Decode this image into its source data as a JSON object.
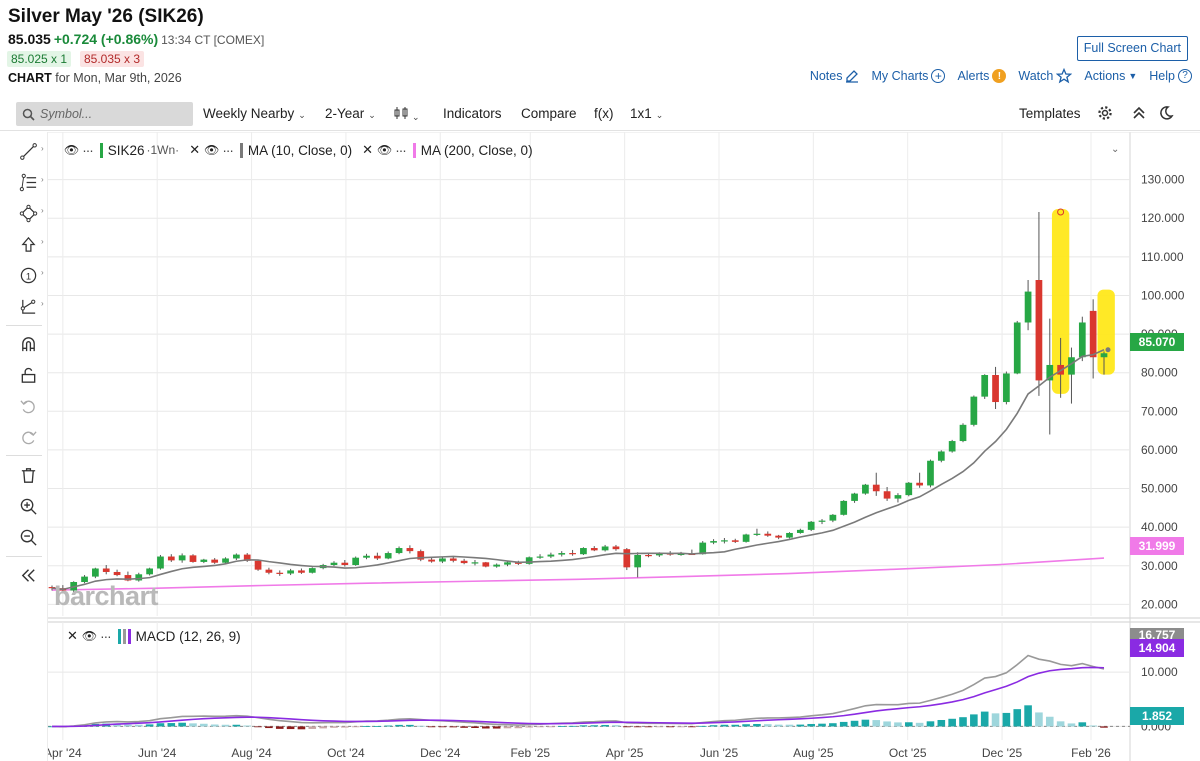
{
  "header": {
    "title": "Silver May '26 (SIK26)",
    "last": "85.035",
    "change": "+0.724 (+0.86%)",
    "time": "13:34 CT [COMEX]",
    "bid": "85.025 x 1",
    "ask": "85.035 x 3",
    "chart_label": "CHART",
    "chart_date": "for Mon, Mar 9th, 2026"
  },
  "buttons": {
    "fullscreen": "Full Screen Chart"
  },
  "nav": {
    "notes": "Notes",
    "mycharts": "My Charts",
    "alerts": "Alerts",
    "alerts_badge": "!",
    "watch": "Watch",
    "actions": "Actions",
    "help": "Help"
  },
  "toolbar": {
    "symbol_placeholder": "Symbol...",
    "period": "Weekly Nearby",
    "range": "2-Year",
    "indicators": "Indicators",
    "compare": "Compare",
    "fx": "f(x)",
    "layout": "1x1",
    "templates": "Templates"
  },
  "legend": {
    "series": "SIK26",
    "series_suffix": "·1Wn·",
    "ma10": "MA (10, Close, 0)",
    "ma200": "MA (200, Close, 0)",
    "macd": "MACD (12, 26, 9)"
  },
  "watermark": "barchart",
  "colors": {
    "up": "#27a745",
    "down": "#d9372f",
    "ma10": "#7a7a7a",
    "ma200": "#f07ae8",
    "macd": "#999999",
    "signal": "#8a2be2",
    "hist_up": "#1aa8a8",
    "hist_up_light": "#9ed6dc",
    "hist_down": "#8b1a1a",
    "highlight": "#ffe81a",
    "accent": "#1c5fa8"
  },
  "chart_data": {
    "type": "candlestick",
    "title": "Silver May '26 (SIK26)",
    "timeframe": "Weekly Nearby, 2-Year",
    "x_tick_labels": [
      "Apr '24",
      "Jun '24",
      "Aug '24",
      "Oct '24",
      "Dec '24",
      "Feb '25",
      "Apr '25",
      "Jun '25",
      "Aug '25",
      "Oct '25",
      "Dec '25",
      "Feb '26"
    ],
    "y_tick_labels": [
      "130.000",
      "120.000",
      "110.000",
      "100.000",
      "90.000",
      "80.000",
      "70.000",
      "60.000",
      "50.000",
      "40.000",
      "30.000",
      "20.000"
    ],
    "ylim": [
      17,
      133
    ],
    "candles": [
      [
        24.5,
        24.9,
        23.6,
        24.2
      ],
      [
        24.2,
        25.0,
        22.9,
        23.6
      ],
      [
        23.6,
        26.0,
        23.2,
        25.8
      ],
      [
        25.8,
        27.6,
        25.5,
        27.2
      ],
      [
        27.2,
        29.5,
        26.8,
        29.3
      ],
      [
        29.3,
        30.2,
        27.8,
        28.4
      ],
      [
        28.4,
        29.0,
        27.3,
        27.6
      ],
      [
        27.6,
        28.5,
        26.0,
        26.2
      ],
      [
        26.2,
        28.2,
        25.9,
        27.8
      ],
      [
        27.8,
        29.5,
        27.5,
        29.3
      ],
      [
        29.3,
        32.8,
        29.0,
        32.4
      ],
      [
        32.4,
        33.0,
        31.0,
        31.4
      ],
      [
        31.4,
        33.2,
        30.8,
        32.7
      ],
      [
        32.7,
        33.0,
        30.8,
        31.0
      ],
      [
        31.0,
        31.8,
        30.7,
        31.6
      ],
      [
        31.6,
        32.0,
        30.5,
        30.8
      ],
      [
        30.8,
        32.2,
        30.5,
        31.9
      ],
      [
        31.9,
        33.2,
        31.5,
        32.9
      ],
      [
        32.9,
        33.3,
        31.0,
        31.3
      ],
      [
        31.3,
        31.6,
        28.7,
        29.0
      ],
      [
        29.0,
        29.5,
        27.8,
        28.2
      ],
      [
        28.2,
        28.8,
        27.4,
        28.0
      ],
      [
        28.0,
        29.2,
        27.6,
        28.8
      ],
      [
        28.8,
        29.3,
        27.9,
        28.2
      ],
      [
        28.2,
        29.6,
        28.0,
        29.4
      ],
      [
        29.4,
        30.5,
        29.1,
        30.2
      ],
      [
        30.2,
        31.2,
        29.9,
        30.8
      ],
      [
        30.8,
        31.5,
        29.8,
        30.2
      ],
      [
        30.2,
        32.4,
        30.0,
        32.1
      ],
      [
        32.1,
        33.1,
        31.7,
        32.6
      ],
      [
        32.6,
        33.4,
        31.5,
        31.9
      ],
      [
        31.9,
        33.7,
        31.7,
        33.3
      ],
      [
        33.3,
        35.0,
        33.0,
        34.6
      ],
      [
        34.6,
        35.3,
        33.2,
        33.8
      ],
      [
        33.8,
        34.2,
        31.2,
        31.6
      ],
      [
        31.6,
        32.3,
        30.8,
        31.1
      ],
      [
        31.1,
        32.2,
        30.7,
        31.9
      ],
      [
        31.9,
        32.5,
        30.9,
        31.3
      ],
      [
        31.3,
        31.8,
        30.4,
        30.7
      ],
      [
        30.7,
        31.5,
        30.1,
        30.9
      ],
      [
        30.9,
        31.0,
        29.6,
        29.8
      ],
      [
        29.8,
        30.6,
        29.5,
        30.3
      ],
      [
        30.3,
        31.2,
        29.9,
        30.9
      ],
      [
        30.9,
        31.3,
        30.2,
        30.5
      ],
      [
        30.5,
        32.4,
        30.3,
        32.2
      ],
      [
        32.2,
        33.0,
        31.8,
        32.4
      ],
      [
        32.4,
        33.4,
        32.0,
        32.9
      ],
      [
        32.9,
        33.8,
        32.4,
        33.3
      ],
      [
        33.3,
        34.1,
        32.6,
        33.0
      ],
      [
        33.0,
        34.8,
        32.8,
        34.6
      ],
      [
        34.6,
        35.1,
        33.8,
        34.0
      ],
      [
        34.0,
        35.4,
        33.7,
        35.0
      ],
      [
        35.0,
        35.4,
        33.9,
        34.3
      ],
      [
        34.3,
        34.6,
        28.9,
        29.6
      ],
      [
        29.6,
        33.5,
        27.0,
        32.8
      ],
      [
        32.8,
        33.4,
        32.2,
        32.7
      ],
      [
        32.7,
        33.5,
        32.3,
        33.2
      ],
      [
        33.2,
        33.8,
        32.6,
        32.9
      ],
      [
        32.9,
        33.6,
        32.6,
        33.1
      ],
      [
        33.1,
        34.2,
        32.8,
        33.0
      ],
      [
        33.0,
        36.4,
        32.9,
        36.0
      ],
      [
        36.0,
        36.9,
        35.6,
        36.4
      ],
      [
        36.4,
        37.2,
        35.8,
        36.6
      ],
      [
        36.6,
        37.0,
        35.9,
        36.2
      ],
      [
        36.2,
        38.3,
        36.0,
        38.1
      ],
      [
        38.1,
        39.6,
        37.7,
        38.3
      ],
      [
        38.3,
        38.9,
        37.5,
        37.8
      ],
      [
        37.8,
        38.0,
        36.9,
        37.3
      ],
      [
        37.3,
        38.7,
        37.1,
        38.5
      ],
      [
        38.5,
        39.6,
        38.3,
        39.3
      ],
      [
        39.3,
        41.6,
        39.0,
        41.4
      ],
      [
        41.4,
        42.1,
        40.8,
        41.7
      ],
      [
        41.7,
        43.4,
        41.3,
        43.2
      ],
      [
        43.2,
        47.0,
        43.0,
        46.8
      ],
      [
        46.8,
        48.9,
        46.3,
        48.7
      ],
      [
        48.7,
        51.2,
        48.4,
        51.0
      ],
      [
        51.0,
        54.1,
        48.1,
        49.3
      ],
      [
        49.3,
        50.4,
        46.8,
        47.4
      ],
      [
        47.4,
        48.8,
        46.4,
        48.3
      ],
      [
        48.3,
        51.7,
        48.0,
        51.5
      ],
      [
        51.5,
        54.1,
        50.2,
        50.8
      ],
      [
        50.8,
        57.5,
        50.3,
        57.2
      ],
      [
        57.2,
        59.9,
        56.8,
        59.6
      ],
      [
        59.6,
        62.6,
        59.3,
        62.3
      ],
      [
        62.3,
        66.9,
        62.0,
        66.5
      ],
      [
        66.5,
        74.1,
        66.1,
        73.8
      ],
      [
        73.8,
        79.6,
        73.2,
        79.4
      ],
      [
        79.4,
        81.5,
        70.6,
        72.4
      ],
      [
        72.4,
        80.3,
        71.8,
        79.8
      ],
      [
        79.8,
        93.4,
        79.6,
        93.0
      ],
      [
        93.0,
        104.0,
        91.0,
        101.0
      ],
      [
        104.0,
        121.6,
        74.0,
        78.0
      ],
      [
        78.0,
        94.0,
        64.0,
        82.0
      ],
      [
        82.0,
        89.0,
        73.5,
        79.5
      ],
      [
        79.5,
        86.5,
        72.0,
        84.0
      ],
      [
        84.0,
        94.5,
        83.0,
        93.0
      ],
      [
        96.0,
        99.0,
        78.5,
        84.0
      ],
      [
        84.0,
        85.5,
        79.5,
        85.035
      ]
    ],
    "series": [
      {
        "name": "MA (10, Close, 0)",
        "value_label": "85.070"
      },
      {
        "name": "MA (200, Close, 0)",
        "value_label": "31.999"
      }
    ],
    "ma200": [
      23.7,
      24.2,
      24.9,
      25.5,
      26.0,
      26.5,
      27.2,
      28.0,
      29.1,
      30.3,
      31.999
    ],
    "highlights": [
      "week 92 (late Jan '26) spike to 121.6",
      "weeks 96-97 (late Feb '26)"
    ],
    "macd_panel": {
      "title": "MACD (12, 26, 9)",
      "y_tick_labels": [
        "10.000",
        "0.000"
      ],
      "ylim": [
        -2.5,
        18.5
      ],
      "macd_last": "16.757",
      "signal_last": "14.904",
      "hist_last": "1.852"
    }
  }
}
